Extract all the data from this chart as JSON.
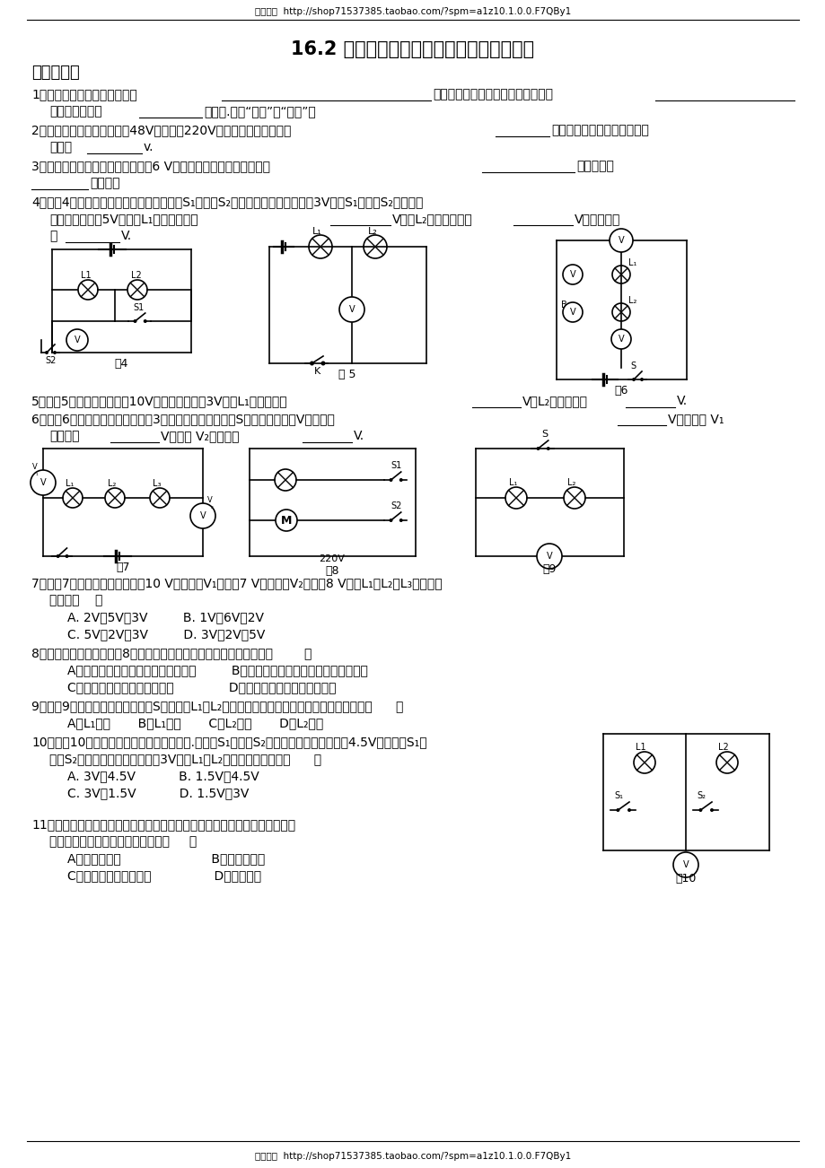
{
  "header_text": "每天教育  http://shop71537385.taobao.com/?spm=a1z10.1.0.0.F7QBy1",
  "title": "16.2 探究串、并联电路电压的规律同步练习",
  "section": "基础练习：",
  "footer_text": "每天教育  http://shop71537385.taobao.com/?spm=a1z10.1.0.0.F7QBy1",
  "bg_color": "#ffffff",
  "text_color": "#000000",
  "font_size_header": 7.5,
  "font_size_title": 15,
  "font_size_section": 13,
  "font_size_body": 10,
  "line_color": "#000000"
}
